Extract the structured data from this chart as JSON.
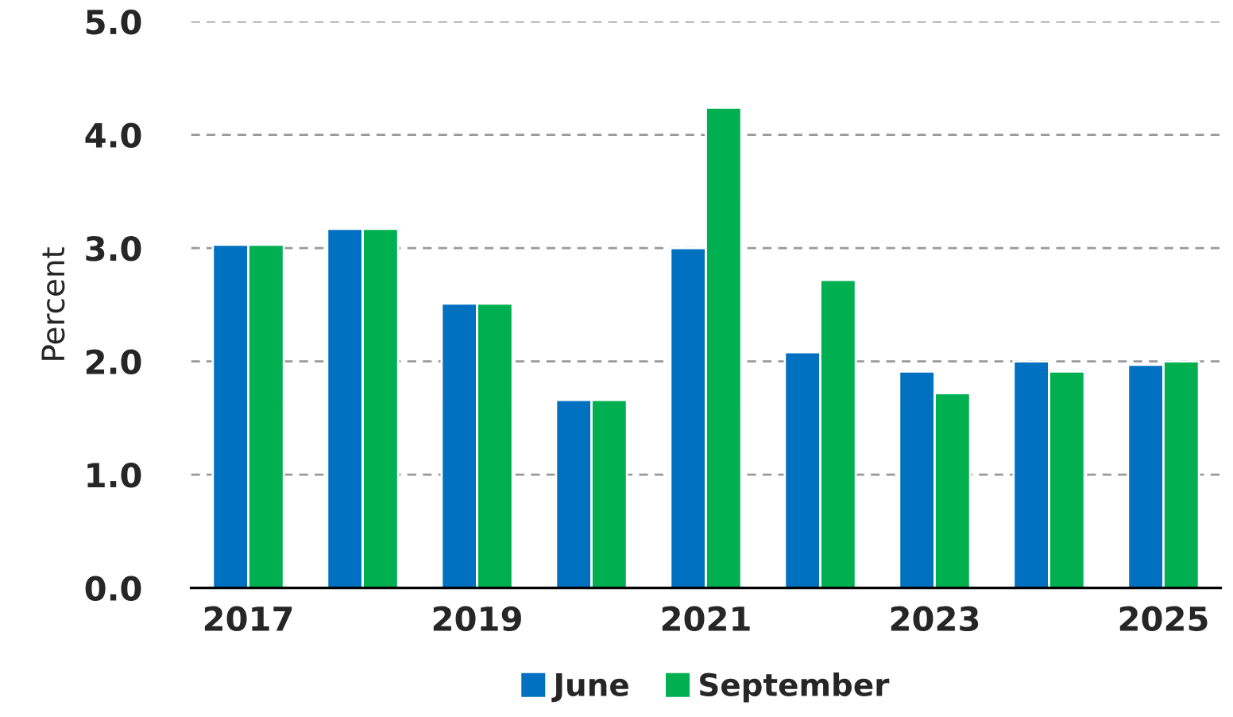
{
  "chart_data": {
    "type": "bar",
    "ylabel": "Percent",
    "categories": [
      "2017",
      null,
      "2019",
      null,
      "2021",
      null,
      "2023",
      null,
      "2025"
    ],
    "series": [
      {
        "name": "June",
        "color": "#0070c0",
        "values": [
          3.03,
          3.17,
          2.51,
          1.66,
          3.0,
          2.08,
          1.91,
          2.0,
          1.97
        ]
      },
      {
        "name": "September",
        "color": "#00b050",
        "values": [
          3.03,
          3.17,
          2.51,
          1.66,
          4.24,
          2.72,
          1.72,
          1.91,
          2.0
        ]
      }
    ],
    "ylim": [
      0,
      5
    ],
    "yticks": [
      {
        "value": 0,
        "label": "0.0"
      },
      {
        "value": 1,
        "label": "1.0"
      },
      {
        "value": 2,
        "label": "2.0"
      },
      {
        "value": 3,
        "label": "3.0"
      },
      {
        "value": 4,
        "label": "4.0"
      },
      {
        "value": 5,
        "label": "5.0"
      }
    ],
    "grid": "y",
    "legend": "bottom"
  }
}
